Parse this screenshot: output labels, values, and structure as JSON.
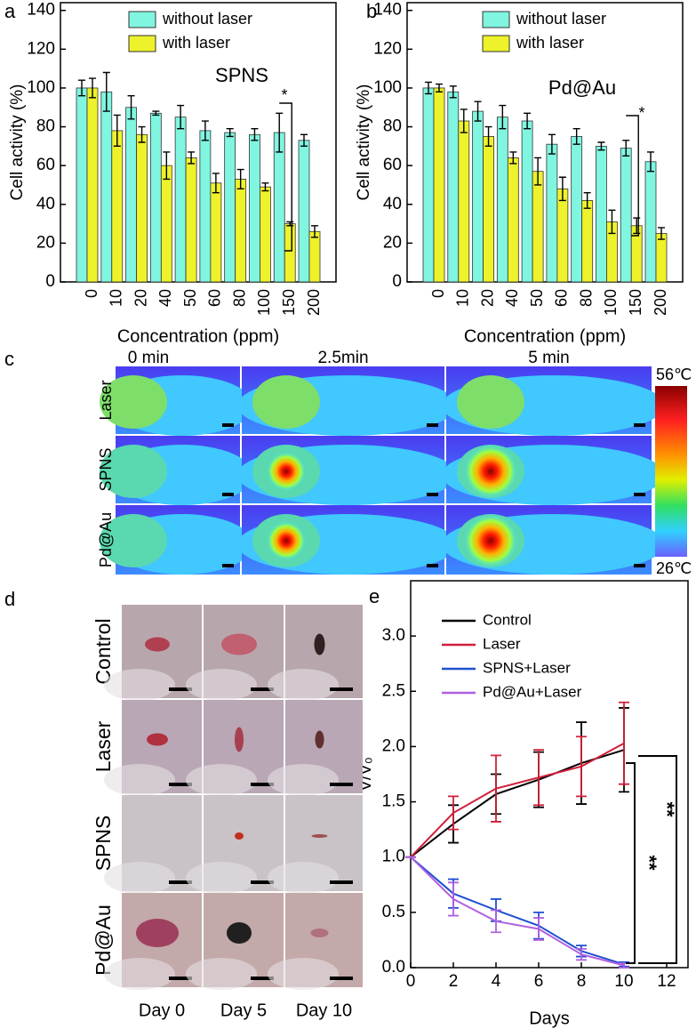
{
  "chart_data": [
    {
      "type": "bar",
      "panel_label": "a",
      "xlabel": "Concentration (ppm)",
      "ylabel": "Cell activity (%)",
      "categories": [
        "0",
        "10",
        "20",
        "40",
        "50",
        "60",
        "80",
        "100",
        "150",
        "200"
      ],
      "series": [
        {
          "name": "without laser",
          "color": "#80f5e0",
          "values": [
            100,
            98,
            90,
            87,
            85,
            78,
            77,
            76,
            77,
            73
          ],
          "errors": [
            4,
            10,
            6,
            1,
            6,
            5,
            2,
            3,
            10,
            3
          ]
        },
        {
          "name": "with laser",
          "color": "#eef22a",
          "values": [
            100,
            78,
            76,
            60,
            64,
            51,
            53,
            49,
            30,
            26
          ],
          "errors": [
            5,
            8,
            4,
            7,
            3,
            5,
            5,
            2,
            1,
            3
          ]
        }
      ],
      "ylim": [
        0,
        144
      ],
      "yticks": [
        0,
        20,
        40,
        60,
        80,
        100,
        120,
        140
      ],
      "annotations": [
        "SPNS",
        "*"
      ]
    },
    {
      "type": "bar",
      "panel_label": "b",
      "xlabel": "Concentration (ppm)",
      "ylabel": "Cell activity (%)",
      "categories": [
        "0",
        "10",
        "20",
        "40",
        "50",
        "60",
        "80",
        "100",
        "150",
        "200"
      ],
      "series": [
        {
          "name": "without laser",
          "color": "#80f5e0",
          "values": [
            100,
            98,
            88,
            85,
            83,
            71,
            75,
            70,
            69,
            62
          ],
          "errors": [
            3,
            3,
            5,
            6,
            4,
            5,
            4,
            2,
            4,
            5
          ]
        },
        {
          "name": "with laser",
          "color": "#eef22a",
          "values": [
            100,
            83,
            75,
            64,
            57,
            48,
            42,
            31,
            29,
            25
          ],
          "errors": [
            2,
            6,
            5,
            3,
            7,
            6,
            4,
            6,
            4,
            3
          ]
        }
      ],
      "ylim": [
        0,
        144
      ],
      "yticks": [
        0,
        20,
        40,
        60,
        80,
        100,
        120,
        140
      ],
      "annotations": [
        "Pd@Au",
        "*"
      ]
    },
    {
      "type": "line",
      "panel_label": "e",
      "xlabel": "Days",
      "ylabel": "V/V₀",
      "x": [
        0,
        2,
        4,
        6,
        8,
        10
      ],
      "series": [
        {
          "name": "Control",
          "color": "#000000",
          "values": [
            1,
            1.3,
            1.57,
            1.7,
            1.85,
            1.97
          ],
          "errors": [
            0,
            0.17,
            0.18,
            0.25,
            0.37,
            0.38
          ]
        },
        {
          "name": "Laser",
          "color": "#d0203a",
          "values": [
            1,
            1.4,
            1.62,
            1.72,
            1.82,
            2.03
          ],
          "errors": [
            0,
            0.15,
            0.3,
            0.25,
            0.27,
            0.37
          ]
        },
        {
          "name": "SPNS+Laser",
          "color": "#2050d0",
          "values": [
            1,
            0.67,
            0.52,
            0.38,
            0.15,
            0.03
          ],
          "errors": [
            0,
            0.13,
            0.1,
            0.12,
            0.05,
            0.02
          ]
        },
        {
          "name": "Pd@Au+Laser",
          "color": "#b060e0",
          "values": [
            1,
            0.62,
            0.42,
            0.35,
            0.12,
            0.02
          ],
          "errors": [
            0,
            0.15,
            0.1,
            0.1,
            0.05,
            0.02
          ]
        }
      ],
      "xlim": [
        0,
        13
      ],
      "ylim": [
        0,
        3.5
      ],
      "xticks": [
        0,
        2,
        4,
        6,
        8,
        10,
        12
      ],
      "yticks": [
        {
          "value": 0,
          "label": "0.0"
        },
        0.5,
        {
          "value": 1,
          "label": "1.0"
        },
        1.5,
        {
          "value": 2,
          "label": "2.0"
        },
        2.5,
        {
          "value": 3,
          "label": "3.0"
        }
      ],
      "annotations": [
        "**",
        "**"
      ]
    }
  ],
  "thermal_images": {
    "panel_label": "c",
    "columns": [
      "0 min",
      "2.5min",
      "5 min"
    ],
    "rows": [
      "Laser",
      "SPNS",
      "Pd@Au"
    ],
    "scale_max": "56℃",
    "scale_min": "26℃"
  },
  "photos": {
    "panel_label": "d",
    "rows": [
      "Control",
      "Laser",
      "SPNS",
      "Pd@Au"
    ],
    "columns": [
      "Day 0",
      "Day 5",
      "Day 10"
    ]
  }
}
